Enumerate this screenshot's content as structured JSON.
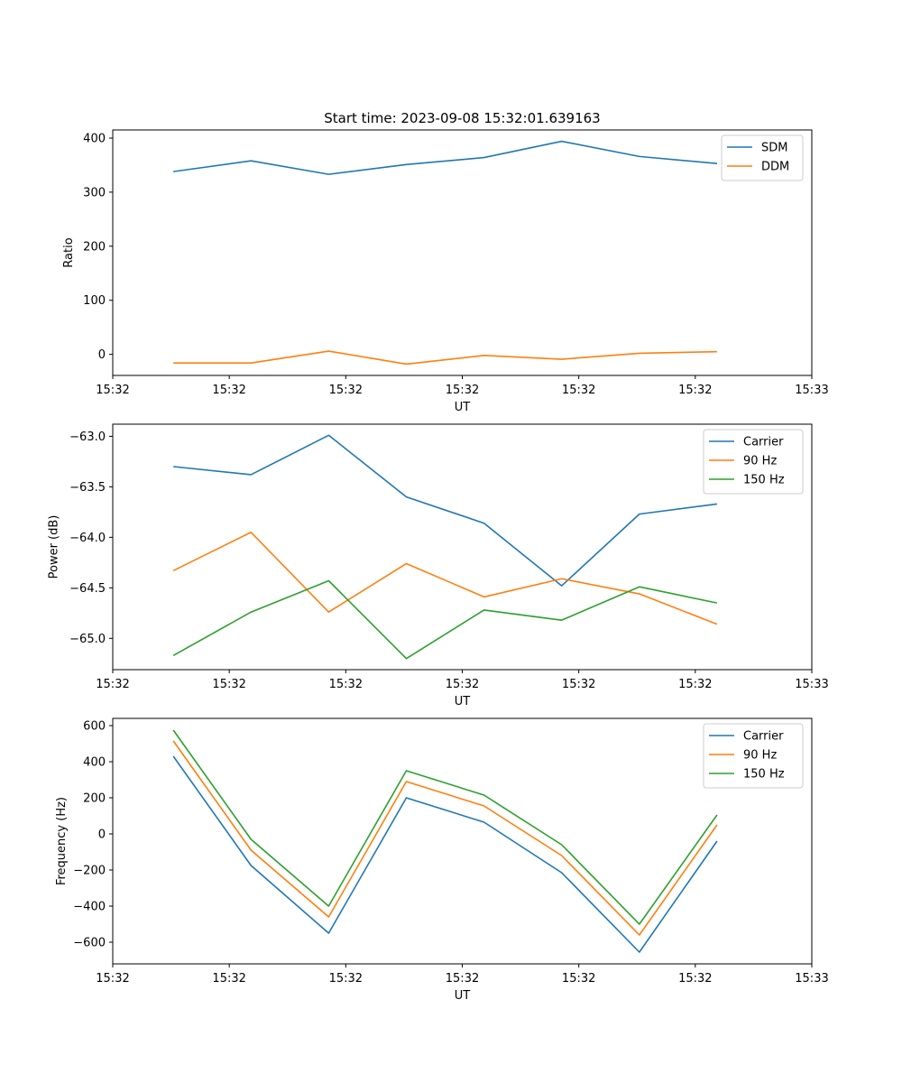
{
  "title": "Start time: 2023-09-08 15:32:01.639163",
  "chart_data": [
    {
      "type": "line",
      "title": "Start time: 2023-09-08 15:32:01.639163",
      "xlabel": "UT",
      "ylabel": "Ratio",
      "x": [
        1,
        2,
        3,
        4,
        5,
        6,
        7,
        8
      ],
      "xlim": [
        0.22,
        9.22
      ],
      "x_ticks": [
        0.22,
        1.72,
        3.22,
        4.72,
        6.22,
        7.72,
        9.22
      ],
      "x_tick_labels": [
        "15:32",
        "15:32",
        "15:32",
        "15:32",
        "15:32",
        "15:32",
        "15:33"
      ],
      "ylim": [
        -39,
        415
      ],
      "y_ticks": [
        0,
        100,
        200,
        300,
        400
      ],
      "y_tick_labels": [
        "0",
        "100",
        "200",
        "300",
        "400"
      ],
      "legend": "top-right",
      "series": [
        {
          "name": "SDM",
          "color": "#1f77b4",
          "values": [
            338,
            358,
            333,
            351,
            364,
            394,
            366,
            353
          ]
        },
        {
          "name": "DDM",
          "color": "#ff7f0e",
          "values": [
            -16,
            -16,
            6,
            -18,
            -2,
            -9,
            2,
            5
          ]
        }
      ]
    },
    {
      "type": "line",
      "title": "",
      "xlabel": "UT",
      "ylabel": "Power (dB)",
      "x": [
        1,
        2,
        3,
        4,
        5,
        6,
        7,
        8
      ],
      "xlim": [
        0.22,
        9.22
      ],
      "x_ticks": [
        0.22,
        1.72,
        3.22,
        4.72,
        6.22,
        7.72,
        9.22
      ],
      "x_tick_labels": [
        "15:32",
        "15:32",
        "15:32",
        "15:32",
        "15:32",
        "15:32",
        "15:33"
      ],
      "ylim": [
        -65.31,
        -62.88
      ],
      "y_ticks": [
        -65.0,
        -64.5,
        -64.0,
        -63.5,
        -63.0
      ],
      "y_tick_labels": [
        "−65.0",
        "−64.5",
        "−64.0",
        "−63.5",
        "−63.0"
      ],
      "legend": "top-right",
      "series": [
        {
          "name": "Carrier",
          "color": "#1f77b4",
          "values": [
            -63.3,
            -63.38,
            -62.99,
            -63.6,
            -63.86,
            -64.48,
            -63.77,
            -63.67
          ]
        },
        {
          "name": "90 Hz",
          "color": "#ff7f0e",
          "values": [
            -64.33,
            -63.95,
            -64.74,
            -64.26,
            -64.59,
            -64.41,
            -64.56,
            -64.86
          ]
        },
        {
          "name": "150 Hz",
          "color": "#2ca02c",
          "values": [
            -65.17,
            -64.74,
            -64.43,
            -65.2,
            -64.72,
            -64.82,
            -64.49,
            -64.65
          ]
        }
      ]
    },
    {
      "type": "line",
      "title": "",
      "xlabel": "UT",
      "ylabel": "Frequency (Hz)",
      "x": [
        1,
        2,
        3,
        4,
        5,
        6,
        7,
        8
      ],
      "xlim": [
        0.22,
        9.22
      ],
      "x_ticks": [
        0.22,
        1.72,
        3.22,
        4.72,
        6.22,
        7.72,
        9.22
      ],
      "x_tick_labels": [
        "15:32",
        "15:32",
        "15:32",
        "15:32",
        "15:32",
        "15:32",
        "15:33"
      ],
      "ylim": [
        -720,
        640
      ],
      "y_ticks": [
        -600,
        -400,
        -200,
        0,
        200,
        400,
        600
      ],
      "y_tick_labels": [
        "−600",
        "−400",
        "−200",
        "0",
        "200",
        "400",
        "600"
      ],
      "legend": "top-right",
      "series": [
        {
          "name": "Carrier",
          "color": "#1f77b4",
          "values": [
            430,
            -175,
            -550,
            200,
            65,
            -215,
            -655,
            -40
          ]
        },
        {
          "name": "90 Hz",
          "color": "#ff7f0e",
          "values": [
            515,
            -90,
            -460,
            290,
            155,
            -120,
            -560,
            50
          ]
        },
        {
          "name": "150 Hz",
          "color": "#2ca02c",
          "values": [
            575,
            -30,
            -400,
            350,
            215,
            -60,
            -500,
            105
          ]
        }
      ]
    }
  ]
}
